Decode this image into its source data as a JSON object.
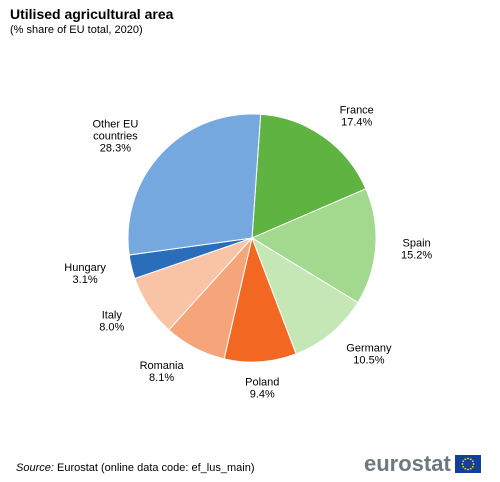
{
  "title": "Utilised agricultural area",
  "subtitle": "(% share of EU total, 2020)",
  "source": {
    "prefix": "Source:",
    "text": "Eurostat (online data code: ef_lus_main)"
  },
  "logo": {
    "text": "eurostat"
  },
  "chart_data": {
    "type": "pie",
    "title": "Utilised agricultural area",
    "subtitle": "(% share of EU total, 2020)",
    "slices": [
      {
        "name": "France",
        "value": 17.4,
        "color": "#5fb441",
        "label_lines": [
          "France",
          "17.4%"
        ]
      },
      {
        "name": "Spain",
        "value": 15.2,
        "color": "#a2d98e",
        "label_lines": [
          "Spain",
          "15.2%"
        ]
      },
      {
        "name": "Germany",
        "value": 10.5,
        "color": "#c5e6b5",
        "label_lines": [
          "Germany",
          "10.5%"
        ]
      },
      {
        "name": "Poland",
        "value": 9.4,
        "color": "#f26722",
        "label_lines": [
          "Poland",
          "9.4%"
        ]
      },
      {
        "name": "Romania",
        "value": 8.1,
        "color": "#f6a57b",
        "label_lines": [
          "Romania",
          "8.1%"
        ]
      },
      {
        "name": "Italy",
        "value": 8.0,
        "color": "#f9c4a6",
        "label_lines": [
          "Italy",
          "8.0%"
        ]
      },
      {
        "name": "Hungary",
        "value": 3.1,
        "color": "#2a6ebb",
        "label_lines": [
          "Hungary",
          "3.1%"
        ]
      },
      {
        "name": "Other EU countries",
        "value": 28.3,
        "color": "#75a8df",
        "label_lines": [
          "Other EU",
          "countries",
          "28.3%"
        ]
      }
    ]
  }
}
